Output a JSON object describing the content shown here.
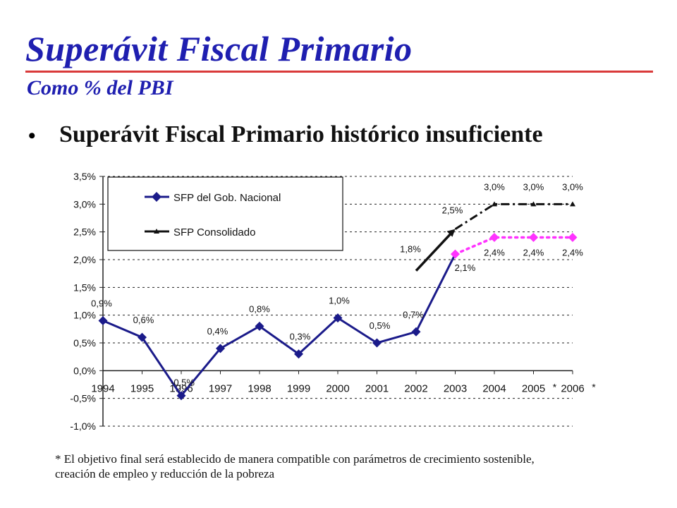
{
  "header": {
    "title": "Superávit Fiscal Primario",
    "subtitle": "Como % del PBI"
  },
  "bullet": {
    "symbol": "•",
    "text": "Superávit Fiscal Primario histórico insuficiente"
  },
  "footnote": {
    "line1": "* El objetivo final será establecido de manera compatible con parámetros de crecimiento sostenible,",
    "line2": "creación  de empleo y reducción de la pobreza"
  },
  "colors": {
    "title": "#1f1fb0",
    "rule": "#d93a3a",
    "series_nacional": "#1b1b8a",
    "series_nacional_projection": "#ff33ff",
    "series_consolidado": "#111111"
  },
  "chart_data": {
    "type": "line",
    "categories": [
      "1994",
      "1995",
      "1996",
      "1997",
      "1998",
      "1999",
      "2000",
      "2001",
      "2002",
      "2003",
      "2004",
      "2005",
      "2006"
    ],
    "category_suffix": [
      "",
      "",
      "",
      "",
      "",
      "",
      "",
      "",
      "",
      "",
      "",
      "*",
      "*"
    ],
    "ylim": [
      -1.0,
      3.5
    ],
    "yticks": [
      "3,5%",
      "3,0%",
      "2,5%",
      "2,0%",
      "1,5%",
      "1,0%",
      "0,5%",
      "0,0%",
      "-0,5%",
      "-1,0%"
    ],
    "ytick_values": [
      3.5,
      3.0,
      2.5,
      2.0,
      1.5,
      1.0,
      0.5,
      0.0,
      -0.5,
      -1.0
    ],
    "grid": "horizontal dotted",
    "legend_position": "top-left",
    "series": [
      {
        "name": "SFP del Gob. Nacional",
        "marker": "diamond",
        "values": [
          0.9,
          0.6,
          -0.45,
          0.4,
          0.8,
          0.3,
          0.95,
          0.5,
          0.7,
          2.1,
          2.4,
          2.4,
          2.4
        ],
        "labels": [
          "0,9%",
          "0,6%",
          "-0,5%",
          "0,4%",
          "0,8%",
          "0,3%",
          "1,0%",
          "0,5%",
          "0,7%",
          "2,1%",
          "2,4%",
          "2,4%",
          "2,4%"
        ],
        "projection_from_index": 9
      },
      {
        "name": "SFP Consolidado",
        "marker": "triangle",
        "values": [
          null,
          null,
          null,
          null,
          null,
          null,
          null,
          null,
          1.8,
          2.55,
          3.0,
          3.0,
          3.0
        ],
        "labels": [
          null,
          null,
          null,
          null,
          null,
          null,
          null,
          null,
          "1,8%",
          "2,5%",
          "3,0%",
          "3,0%",
          "3,0%"
        ],
        "projection_from_index": 9
      }
    ]
  }
}
